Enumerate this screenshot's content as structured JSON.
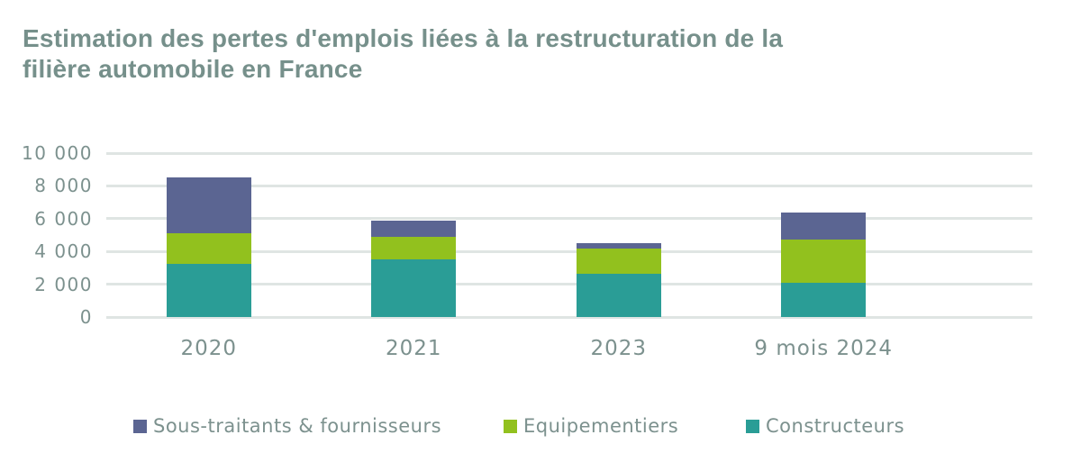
{
  "title": "Estimation des pertes d'emplois liées à la restructuration de la\nfilière automobile en France",
  "colors": {
    "title_text": "#76908b",
    "axis_text": "#7c918e",
    "gridline": "#dfe5e3",
    "background": "#ffffff",
    "sous_traitants": "#5b6592",
    "equipementiers": "#92c11e",
    "constructeurs": "#2a9d96"
  },
  "chart_data": {
    "type": "bar",
    "stacked": true,
    "title": "Estimation des pertes d'emplois liées à la restructuration de la filière automobile en France",
    "categories": [
      "2020",
      "2021",
      "2023",
      "9 mois 2024"
    ],
    "series": [
      {
        "name": "Sous-traitants & fournisseurs",
        "color": "#5b6592",
        "values": [
          3400,
          1000,
          300,
          1650
        ]
      },
      {
        "name": "Equipementiers",
        "color": "#92c11e",
        "values": [
          1850,
          1400,
          1550,
          2650
        ]
      },
      {
        "name": "Constructeurs",
        "color": "#2a9d96",
        "values": [
          3250,
          3500,
          2650,
          2100
        ]
      }
    ],
    "stack_order_bottom_to_top": [
      "Constructeurs",
      "Equipementiers",
      "Sous-traitants & fournisseurs"
    ],
    "totals_estimated": [
      8500,
      5900,
      4500,
      6400
    ],
    "ylim": [
      0,
      10000
    ],
    "yticks": [
      {
        "value": 10000,
        "label": "10 000"
      },
      {
        "value": 8000,
        "label": "8 000"
      },
      {
        "value": 6000,
        "label": "6 000"
      },
      {
        "value": 4000,
        "label": "4 000"
      },
      {
        "value": 2000,
        "label": "2 000"
      },
      {
        "value": 0,
        "label": "0"
      }
    ],
    "xlabel": "",
    "ylabel": "",
    "grid": true,
    "legend_position": "bottom"
  }
}
